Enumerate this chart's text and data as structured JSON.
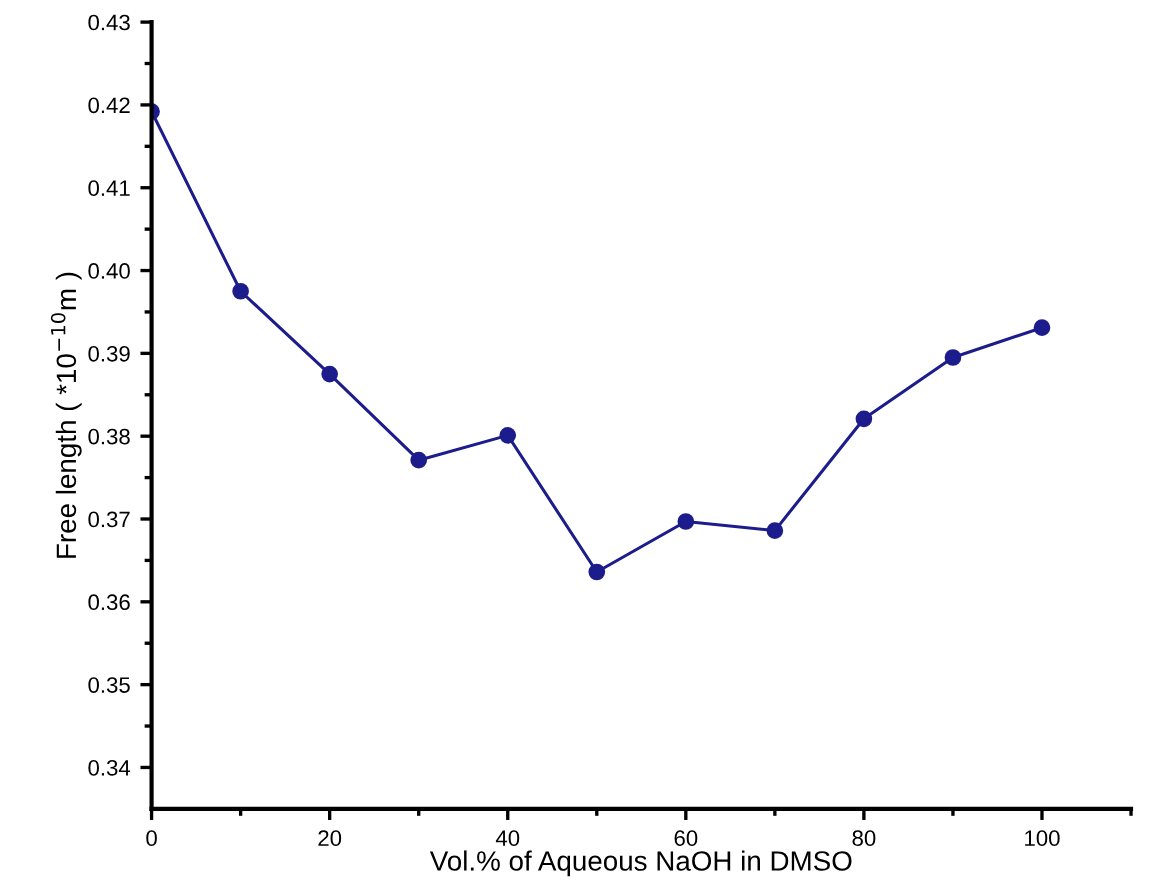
{
  "chart_data": {
    "type": "line",
    "xlabel": "Vol.% of Aqueous NaOH in DMSO",
    "ylabel": "Free length ( *10$^{−10}$m )",
    "x": [
      0,
      10,
      20,
      30,
      40,
      50,
      60,
      70,
      80,
      90,
      100
    ],
    "series": [
      {
        "color": "#1c1c8c",
        "values": [
          0.4192,
          0.3975,
          0.3875,
          0.3771,
          0.3801,
          0.3636,
          0.3697,
          0.3686,
          0.3821,
          0.3895,
          0.3931
        ]
      }
    ],
    "xlim": [
      0,
      110
    ],
    "ylim": [
      0.335,
      0.43
    ],
    "xticks": [
      0,
      {
        "value": 10,
        "label": null
      },
      20,
      {
        "value": 30,
        "label": null
      },
      40,
      {
        "value": 50,
        "label": null
      },
      60,
      {
        "value": 70,
        "label": null
      },
      80,
      {
        "value": 90,
        "label": null
      },
      100,
      {
        "value": 110,
        "label": null
      }
    ],
    "yticks": [
      {
        "value": 0.34,
        "label": "0.34"
      },
      {
        "value": 0.345,
        "label": null
      },
      {
        "value": 0.35,
        "label": "0.35"
      },
      {
        "value": 0.355,
        "label": null
      },
      {
        "value": 0.36,
        "label": "0.36"
      },
      {
        "value": 0.365,
        "label": null
      },
      {
        "value": 0.37,
        "label": "0.37"
      },
      {
        "value": 0.375,
        "label": null
      },
      {
        "value": 0.38,
        "label": "0.38"
      },
      {
        "value": 0.385,
        "label": null
      },
      {
        "value": 0.39,
        "label": "0.39"
      },
      {
        "value": 0.395,
        "label": null
      },
      {
        "value": 0.4,
        "label": "0.40"
      },
      {
        "value": 0.405,
        "label": null
      },
      {
        "value": 0.41,
        "label": "0.41"
      },
      {
        "value": 0.415,
        "label": null
      },
      {
        "value": 0.42,
        "label": "0.42"
      },
      {
        "value": 0.425,
        "label": null
      },
      {
        "value": 0.43,
        "label": "0.43"
      }
    ],
    "marker": "circle",
    "line_style": "solid",
    "grid": false,
    "legend": false
  }
}
